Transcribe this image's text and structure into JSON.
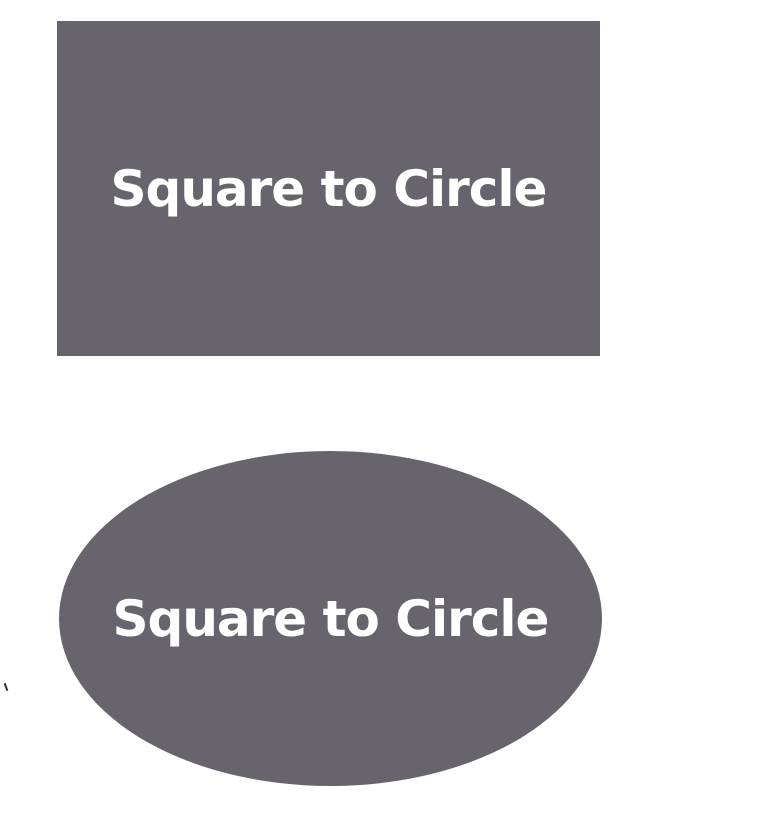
{
  "colors": {
    "background": "#ffffff",
    "shape_fill": "#67646e",
    "label_text": "#ffffff"
  },
  "demo": {
    "square": {
      "label": "Square to Circle"
    },
    "circle": {
      "label": "Square to Circle"
    }
  }
}
